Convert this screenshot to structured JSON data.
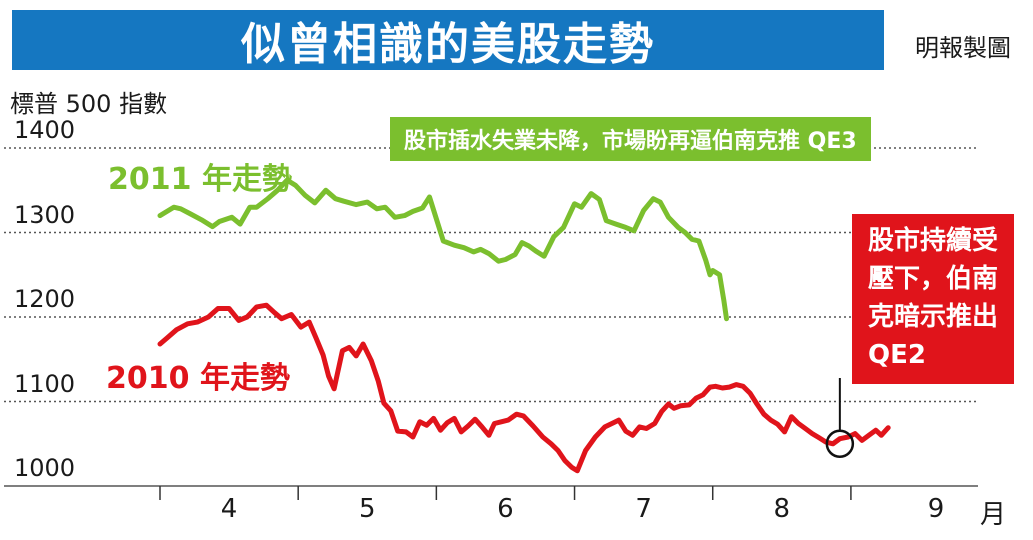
{
  "header": {
    "title": "似曾相識的美股走勢",
    "source": "明報製圖"
  },
  "notes": {
    "green": "股市插水失業未降，市場盼再逼伯南克推 QE3",
    "red_lines": [
      "股市持續受",
      "壓下，伯南",
      "克暗示推出",
      "QE2"
    ]
  },
  "colors": {
    "title_bg": "#1577c1",
    "series_2011": "#7bbf2e",
    "series_2010": "#e0141b"
  },
  "chart_data": {
    "type": "line",
    "title": "似曾相識的美股走勢",
    "ylabel": "標普 500 指數",
    "xlabel": "月",
    "ylim": [
      1000,
      1400
    ],
    "yticks": [
      1000,
      1100,
      1200,
      1300,
      1400
    ],
    "ytick_labels": [
      "1000",
      "1100",
      "1200",
      "1300",
      "1400"
    ],
    "xlim": [
      3.5,
      9.0
    ],
    "xticks": [
      3.5,
      4.5,
      5.5,
      6.5,
      7.5,
      8.5
    ],
    "xtick_labels": [
      {
        "label": "4",
        "x": 4.0
      },
      {
        "label": "5",
        "x": 5.0
      },
      {
        "label": "6",
        "x": 6.0
      },
      {
        "label": "7",
        "x": 7.0
      },
      {
        "label": "8",
        "x": 8.0
      },
      {
        "label": "9",
        "x": 9.0
      }
    ],
    "x_unit": "月",
    "grid": "dotted horizontal",
    "series": [
      {
        "name": "2011 年走勢",
        "color": "#7bbf2e",
        "x": [
          3.5,
          3.53,
          3.6,
          3.65,
          3.72,
          3.8,
          3.88,
          3.93,
          4.02,
          4.08,
          4.15,
          4.2,
          4.28,
          4.35,
          4.42,
          4.48,
          4.55,
          4.62,
          4.7,
          4.77,
          4.83,
          4.92,
          5.0,
          5.07,
          5.13,
          5.2,
          5.27,
          5.33,
          5.4,
          5.45,
          5.5,
          5.55,
          5.63,
          5.7,
          5.77,
          5.82,
          5.88,
          5.95,
          6.0,
          6.07,
          6.12,
          6.17,
          6.22,
          6.28,
          6.35,
          6.42,
          6.5,
          6.55,
          6.62,
          6.68,
          6.73,
          6.8,
          6.87,
          6.93,
          7.0,
          7.07,
          7.12,
          7.18,
          7.25,
          7.3,
          7.35,
          7.4,
          7.45,
          7.48,
          7.5,
          7.55,
          7.58,
          7.6
        ],
        "values": [
          1320,
          1323,
          1330,
          1328,
          1322,
          1315,
          1307,
          1313,
          1318,
          1310,
          1330,
          1330,
          1340,
          1350,
          1362,
          1356,
          1344,
          1335,
          1350,
          1340,
          1337,
          1333,
          1336,
          1328,
          1330,
          1318,
          1320,
          1325,
          1329,
          1342,
          1316,
          1290,
          1285,
          1282,
          1277,
          1280,
          1275,
          1266,
          1268,
          1274,
          1288,
          1284,
          1278,
          1272,
          1295,
          1306,
          1334,
          1330,
          1346,
          1339,
          1314,
          1310,
          1306,
          1302,
          1326,
          1340,
          1336,
          1318,
          1306,
          1300,
          1292,
          1290,
          1267,
          1250,
          1255,
          1250,
          1220,
          1198
        ]
      },
      {
        "name": "2010 年走勢",
        "color": "#e0141b",
        "x": [
          3.5,
          3.55,
          3.62,
          3.7,
          3.77,
          3.85,
          3.92,
          4.0,
          4.07,
          4.13,
          4.2,
          4.27,
          4.33,
          4.38,
          4.45,
          4.52,
          4.58,
          4.63,
          4.68,
          4.72,
          4.76,
          4.82,
          4.87,
          4.92,
          4.97,
          5.03,
          5.08,
          5.12,
          5.17,
          5.22,
          5.28,
          5.33,
          5.38,
          5.43,
          5.48,
          5.53,
          5.58,
          5.63,
          5.68,
          5.73,
          5.78,
          5.83,
          5.88,
          5.92,
          5.97,
          6.02,
          6.08,
          6.13,
          6.2,
          6.27,
          6.33,
          6.38,
          6.43,
          6.48,
          6.52,
          6.58,
          6.65,
          6.72,
          6.77,
          6.82,
          6.87,
          6.92,
          6.97,
          7.02,
          7.08,
          7.13,
          7.18,
          7.22,
          7.27,
          7.33,
          7.38,
          7.43,
          7.48,
          7.52,
          7.57,
          7.62,
          7.67,
          7.72,
          7.77,
          7.82,
          7.87,
          7.92,
          7.97,
          8.02,
          8.07,
          8.12,
          8.17,
          8.22,
          8.27,
          8.32,
          8.37,
          8.42,
          8.48,
          8.53,
          8.58,
          8.63,
          8.68,
          8.72,
          8.77
        ],
        "values": [
          1168,
          1175,
          1185,
          1192,
          1194,
          1200,
          1210,
          1210,
          1196,
          1200,
          1212,
          1214,
          1205,
          1198,
          1203,
          1188,
          1194,
          1175,
          1155,
          1130,
          1115,
          1160,
          1164,
          1154,
          1168,
          1148,
          1124,
          1098,
          1089,
          1065,
          1064,
          1058,
          1076,
          1072,
          1080,
          1066,
          1075,
          1080,
          1064,
          1071,
          1079,
          1070,
          1060,
          1074,
          1076,
          1078,
          1085,
          1083,
          1071,
          1058,
          1050,
          1042,
          1030,
          1022,
          1018,
          1042,
          1058,
          1070,
          1074,
          1078,
          1065,
          1060,
          1070,
          1068,
          1074,
          1088,
          1097,
          1092,
          1095,
          1096,
          1104,
          1108,
          1117,
          1118,
          1116,
          1117,
          1120,
          1118,
          1110,
          1097,
          1085,
          1078,
          1073,
          1064,
          1082,
          1074,
          1068,
          1062,
          1057,
          1052,
          1050,
          1056,
          1058,
          1062,
          1054,
          1060,
          1066,
          1060,
          1069
        ]
      }
    ],
    "annotations": [
      {
        "text": "股市插水失業未降，市場盼再逼伯南克推 QE3",
        "series": "2011 年走勢"
      },
      {
        "text": "股市持續受壓下，伯南克暗示推出QE2",
        "series": "2010 年走勢",
        "marker_x": 8.42,
        "marker_y": 1050
      }
    ]
  }
}
